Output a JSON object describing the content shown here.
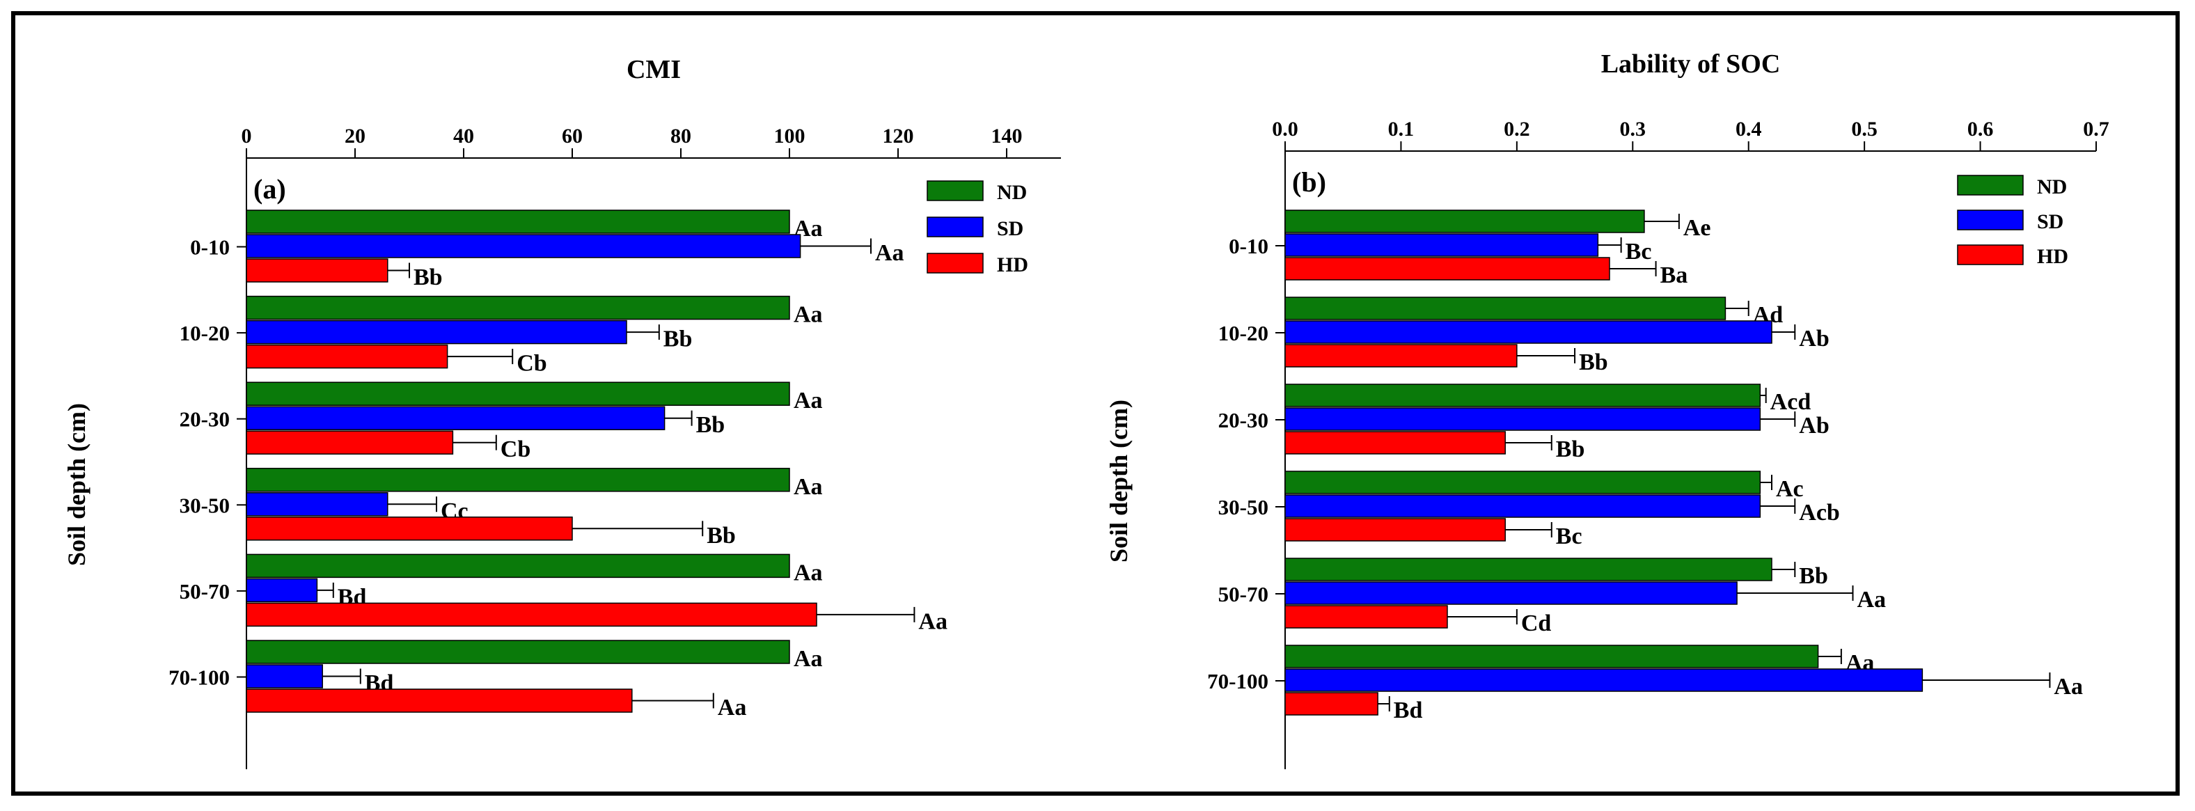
{
  "chart_data": [
    {
      "type": "bar",
      "orientation": "horizontal",
      "panel_label": "(a)",
      "title": "CMI",
      "ylabel": "Soil depth (cm)",
      "xlabel": "",
      "xlim": [
        0,
        150
      ],
      "xticks": [
        0,
        20,
        40,
        60,
        80,
        100,
        120,
        140
      ],
      "xtick_labels": [
        "0",
        "20",
        "40",
        "60",
        "80",
        "100",
        "120",
        "140"
      ],
      "categories": [
        "0-10",
        "10-20",
        "20-30",
        "30-50",
        "50-70",
        "70-100"
      ],
      "legend_position": "top-right",
      "series": [
        {
          "name": "ND",
          "color": "#0a7a0a",
          "values": [
            100,
            100,
            100,
            100,
            100,
            100
          ],
          "errors": [
            0,
            0,
            0,
            0,
            0,
            0
          ],
          "labels": [
            "Aa",
            "Aa",
            "Aa",
            "Aa",
            "Aa",
            "Aa"
          ]
        },
        {
          "name": "SD",
          "color": "#0000ff",
          "values": [
            102,
            70,
            77,
            26,
            13,
            14
          ],
          "errors": [
            13,
            6,
            5,
            9,
            3,
            7
          ],
          "labels": [
            "Aa",
            "Bb",
            "Bb",
            "Cc",
            "Bd",
            "Bd"
          ]
        },
        {
          "name": "HD",
          "color": "#ff0000",
          "values": [
            26,
            37,
            38,
            60,
            105,
            71
          ],
          "errors": [
            4,
            12,
            8,
            24,
            18,
            15
          ],
          "labels": [
            "Bb",
            "Cb",
            "Cb",
            "Bb",
            "Aa",
            "Aa"
          ]
        }
      ]
    },
    {
      "type": "bar",
      "orientation": "horizontal",
      "panel_label": "(b)",
      "title": "Lability of SOC",
      "ylabel": "Soil depth (cm)",
      "xlabel": "",
      "xlim": [
        0,
        0.7
      ],
      "xticks": [
        0,
        0.1,
        0.2,
        0.3,
        0.4,
        0.5,
        0.6,
        0.7
      ],
      "xtick_labels": [
        "0.0",
        "0.1",
        "0.2",
        "0.3",
        "0.4",
        "0.5",
        "0.6",
        "0.7"
      ],
      "categories": [
        "0-10",
        "10-20",
        "20-30",
        "30-50",
        "50-70",
        "70-100"
      ],
      "legend_position": "top-right",
      "series": [
        {
          "name": "ND",
          "color": "#0a7a0a",
          "values": [
            0.31,
            0.38,
            0.41,
            0.41,
            0.42,
            0.46
          ],
          "errors": [
            0.03,
            0.02,
            0.005,
            0.01,
            0.02,
            0.02
          ],
          "labels": [
            "Ae",
            "Ad",
            "Acd",
            "Ac",
            "Bb",
            "Aa"
          ]
        },
        {
          "name": "SD",
          "color": "#0000ff",
          "values": [
            0.27,
            0.42,
            0.41,
            0.41,
            0.39,
            0.55
          ],
          "errors": [
            0.02,
            0.02,
            0.03,
            0.03,
            0.1,
            0.11
          ],
          "labels": [
            "Bc",
            "Ab",
            "Ab",
            "Acb",
            "Aa",
            "Aa"
          ]
        },
        {
          "name": "HD",
          "color": "#ff0000",
          "values": [
            0.28,
            0.2,
            0.19,
            0.19,
            0.14,
            0.08
          ],
          "errors": [
            0.04,
            0.05,
            0.04,
            0.04,
            0.06,
            0.01
          ],
          "labels": [
            "Ba",
            "Bb",
            "Bb",
            "Bc",
            "Cd",
            "Bd"
          ]
        }
      ]
    }
  ]
}
